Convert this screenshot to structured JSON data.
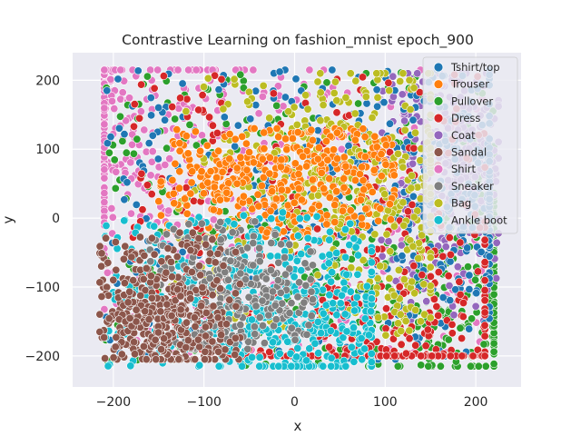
{
  "chart_data": {
    "type": "scatter",
    "title": "Contrastive Learning on fashion_mnist epoch_900",
    "xlabel": "x",
    "ylabel": "y",
    "xlim": [
      -245,
      250
    ],
    "ylim": [
      -245,
      240
    ],
    "x_ticks": [
      -200,
      -100,
      0,
      100,
      200
    ],
    "y_ticks": [
      -200,
      -100,
      0,
      100,
      200
    ],
    "x_tick_labels": [
      "−200",
      "−100",
      "0",
      "100",
      "200"
    ],
    "y_tick_labels": [
      "−200",
      "−100",
      "0",
      "100",
      "200"
    ],
    "grid": true,
    "background_color": "#eaeaf2",
    "legend_position": "upper right",
    "series": [
      {
        "name": "Tshirt/top",
        "color": "#1f77b4",
        "region": {
          "x": [
            -210,
            215
          ],
          "y": [
            -205,
            215
          ]
        },
        "cluster_center": [
          150,
          40
        ]
      },
      {
        "name": "Trouser",
        "color": "#ff7f0e",
        "region": {
          "x": [
            -150,
            110
          ],
          "y": [
            -30,
            130
          ]
        },
        "cluster_center": [
          -10,
          60
        ]
      },
      {
        "name": "Pullover",
        "color": "#2ca02c",
        "region": {
          "x": [
            -210,
            220
          ],
          "y": [
            -215,
            215
          ]
        },
        "cluster_center": [
          180,
          -90
        ]
      },
      {
        "name": "Dress",
        "color": "#d62728",
        "region": {
          "x": [
            -180,
            210
          ],
          "y": [
            -200,
            210
          ]
        },
        "cluster_center": [
          110,
          -160
        ]
      },
      {
        "name": "Coat",
        "color": "#9467bd",
        "region": {
          "x": [
            90,
            225
          ],
          "y": [
            -150,
            210
          ]
        },
        "cluster_center": [
          180,
          100
        ]
      },
      {
        "name": "Sandal",
        "color": "#8c564b",
        "region": {
          "x": [
            -215,
            -60
          ],
          "y": [
            -205,
            -20
          ]
        },
        "cluster_center": [
          -150,
          -150
        ]
      },
      {
        "name": "Shirt",
        "color": "#e377c2",
        "region": {
          "x": [
            -210,
            215
          ],
          "y": [
            -200,
            215
          ]
        },
        "cluster_center": [
          -190,
          150
        ]
      },
      {
        "name": "Sneaker",
        "color": "#7f7f7f",
        "region": {
          "x": [
            -160,
            20
          ],
          "y": [
            -190,
            -5
          ]
        },
        "cluster_center": [
          -60,
          -100
        ]
      },
      {
        "name": "Bag",
        "color": "#bcbd22",
        "region": {
          "x": [
            -140,
            150
          ],
          "y": [
            -170,
            210
          ]
        },
        "cluster_center": [
          80,
          40
        ]
      },
      {
        "name": "Ankle boot",
        "color": "#17becf",
        "region": {
          "x": [
            -210,
            85
          ],
          "y": [
            -215,
            10
          ]
        },
        "cluster_center": [
          0,
          -150
        ]
      }
    ]
  }
}
